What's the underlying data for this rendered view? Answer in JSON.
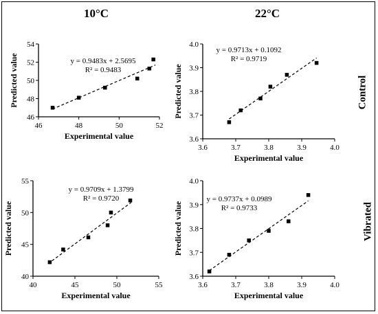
{
  "columns": [
    "10°C",
    "22°C"
  ],
  "rows": [
    "Control",
    "Vibrated"
  ],
  "chart_data": [
    {
      "type": "scatter",
      "xlabel": "Experimental value",
      "ylabel": "Predicted value",
      "xlim": [
        46,
        52
      ],
      "ylim": [
        46,
        54
      ],
      "xticks": [
        46,
        48,
        50,
        52
      ],
      "yticks": [
        46,
        48,
        50,
        52,
        54
      ],
      "xtick_labels": [
        "46",
        "48",
        "50",
        "52"
      ],
      "ytick_labels": [
        "46",
        "48",
        "50",
        "52",
        "54"
      ],
      "points": [
        [
          46.7,
          47.0
        ],
        [
          48.0,
          48.1
        ],
        [
          49.3,
          49.2
        ],
        [
          50.9,
          50.2
        ],
        [
          51.5,
          51.3
        ],
        [
          51.7,
          52.3
        ]
      ],
      "trendline": {
        "slope": 0.9483,
        "intercept": 2.5695,
        "x_range": [
          46.7,
          51.8
        ]
      },
      "annotations": [
        "y = 0.9483x + 2.5695",
        "R² = 0.9483"
      ]
    },
    {
      "type": "scatter",
      "xlabel": "Experimental value",
      "ylabel": "Predicted value",
      "xlim": [
        3.6,
        4.0
      ],
      "ylim": [
        3.6,
        4.0
      ],
      "xticks": [
        3.6,
        3.7,
        3.8,
        3.9,
        4.0
      ],
      "yticks": [
        3.6,
        3.7,
        3.8,
        3.9,
        4.0
      ],
      "xtick_labels": [
        "3.6",
        "3.7",
        "3.8",
        "3.9",
        "4.0"
      ],
      "ytick_labels": [
        "3.6",
        "3.7",
        "3.8",
        "3.9",
        "4.0"
      ],
      "points": [
        [
          3.68,
          3.67
        ],
        [
          3.715,
          3.72
        ],
        [
          3.775,
          3.77
        ],
        [
          3.805,
          3.82
        ],
        [
          3.855,
          3.87
        ],
        [
          3.945,
          3.92
        ]
      ],
      "trendline": {
        "slope": 0.9713,
        "intercept": 0.1092,
        "x_range": [
          3.68,
          3.945
        ]
      },
      "annotations": [
        "y = 0.9713x + 0.1092",
        "R² = 0.9719"
      ]
    },
    {
      "type": "scatter",
      "xlabel": "Experimental value",
      "ylabel": "Predicted value",
      "xlim": [
        40,
        55
      ],
      "ylim": [
        40,
        55
      ],
      "xticks": [
        40,
        45,
        50,
        55
      ],
      "yticks": [
        40,
        45,
        50,
        55
      ],
      "xtick_labels": [
        "40",
        "45",
        "50",
        "55"
      ],
      "ytick_labels": [
        "40",
        "45",
        "50",
        "55"
      ],
      "points": [
        [
          42.0,
          42.2
        ],
        [
          43.6,
          44.2
        ],
        [
          46.6,
          46.1
        ],
        [
          48.9,
          48.0
        ],
        [
          49.3,
          50.0
        ],
        [
          51.6,
          51.9
        ]
      ],
      "trendline": {
        "slope": 0.9709,
        "intercept": 1.3799,
        "x_range": [
          41.8,
          51.7
        ]
      },
      "annotations": [
        "y = 0.9709x + 1.3799",
        "R² = 0.9720"
      ]
    },
    {
      "type": "scatter",
      "xlabel": "Experimental value",
      "ylabel": "Predicted value",
      "xlim": [
        3.6,
        4.0
      ],
      "ylim": [
        3.6,
        4.0
      ],
      "xticks": [
        3.6,
        3.7,
        3.8,
        3.9,
        4.0
      ],
      "yticks": [
        3.6,
        3.7,
        3.8,
        3.9,
        4.0
      ],
      "xtick_labels": [
        "3.6",
        "3.7",
        "3.8",
        "3.9",
        "4.0"
      ],
      "ytick_labels": [
        "3.6",
        "3.7",
        "3.8",
        "3.9",
        "4.0"
      ],
      "points": [
        [
          3.62,
          3.62
        ],
        [
          3.68,
          3.69
        ],
        [
          3.74,
          3.75
        ],
        [
          3.8,
          3.79
        ],
        [
          3.86,
          3.83
        ],
        [
          3.92,
          3.94
        ]
      ],
      "trendline": {
        "slope": 0.9737,
        "intercept": 0.0989,
        "x_range": [
          3.62,
          3.92
        ]
      },
      "annotations": [
        "y = 0.9737x + 0.0989",
        "R² = 0.9733"
      ]
    }
  ]
}
